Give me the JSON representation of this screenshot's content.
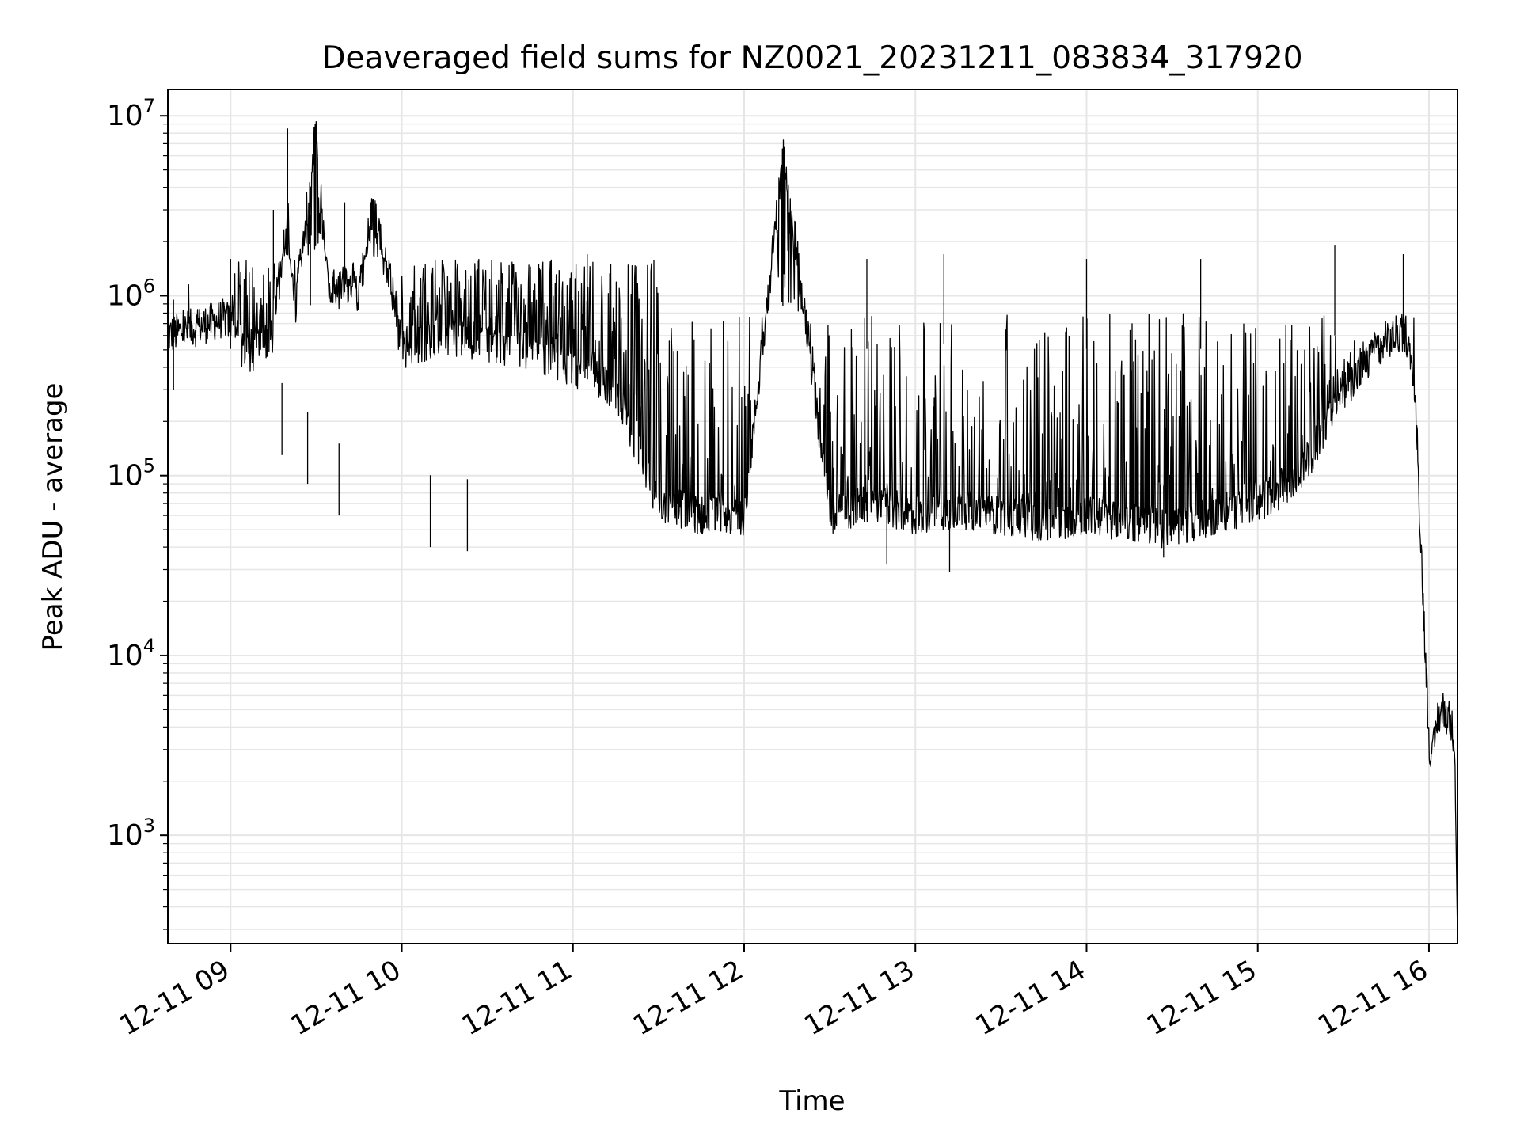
{
  "chart_data": {
    "type": "line",
    "title": "Deaveraged field sums for NZ0021_20231211_083834_317920",
    "xlabel": "Time",
    "ylabel": "Peak ADU - average",
    "y_scale": "log",
    "ylim": [
      250,
      14000000
    ],
    "xlim": [
      "2023-12-11 08:38",
      "2023-12-11 16:10"
    ],
    "grid": "on (major and minor)",
    "line_color": "#000000",
    "grid_color": "#e6e6e6",
    "x_tick_labels": [
      "12-11 09",
      "12-11 10",
      "12-11 11",
      "12-11 12",
      "12-11 13",
      "12-11 14",
      "12-11 15",
      "12-11 16"
    ],
    "y_ticks": [
      {
        "base": "10",
        "exp": "3"
      },
      {
        "base": "10",
        "exp": "4"
      },
      {
        "base": "10",
        "exp": "5"
      },
      {
        "base": "10",
        "exp": "6"
      },
      {
        "base": "10",
        "exp": "7"
      }
    ],
    "series": [
      {
        "x": [
          "2023-12-11 08:38",
          "2023-12-11 08:45",
          "2023-12-11 08:52",
          "2023-12-11 08:58",
          "2023-12-11 09:00",
          "2023-12-11 09:05",
          "2023-12-11 09:10",
          "2023-12-11 09:15",
          "2023-12-11 09:20",
          "2023-12-11 09:22",
          "2023-12-11 09:30",
          "2023-12-11 09:35",
          "2023-12-11 09:40",
          "2023-12-11 09:45",
          "2023-12-11 09:50",
          "2023-12-11 10:00",
          "2023-12-11 10:15",
          "2023-12-11 10:30",
          "2023-12-11 10:45",
          "2023-12-11 11:00",
          "2023-12-11 11:15",
          "2023-12-11 11:30",
          "2023-12-11 11:45",
          "2023-12-11 12:00",
          "2023-12-11 12:14",
          "2023-12-11 12:30",
          "2023-12-11 12:45",
          "2023-12-11 13:00",
          "2023-12-11 13:15",
          "2023-12-11 13:30",
          "2023-12-11 13:45",
          "2023-12-11 14:00",
          "2023-12-11 14:15",
          "2023-12-11 14:30",
          "2023-12-11 14:45",
          "2023-12-11 15:00",
          "2023-12-11 15:15",
          "2023-12-11 15:30",
          "2023-12-11 15:40",
          "2023-12-11 15:48",
          "2023-12-11 15:52",
          "2023-12-11 15:55",
          "2023-12-11 15:58",
          "2023-12-11 16:00",
          "2023-12-11 16:01",
          "2023-12-11 16:03",
          "2023-12-11 16:05",
          "2023-12-11 16:07",
          "2023-12-11 16:09",
          "2023-12-11 16:10"
        ],
        "y": [
          600000,
          650000,
          700000,
          750000,
          700000,
          450000,
          500000,
          600000,
          3000000,
          700000,
          8500000,
          900000,
          1200000,
          1000000,
          3300000,
          500000,
          600000,
          550000,
          500000,
          400000,
          300000,
          70000,
          60000,
          60000,
          6700000,
          60000,
          70000,
          60000,
          65000,
          60000,
          55000,
          60000,
          55000,
          50000,
          60000,
          70000,
          100000,
          300000,
          450000,
          600000,
          620000,
          300000,
          20000,
          3500,
          2500,
          4500,
          5000,
          4500,
          3500,
          300
        ]
      }
    ]
  }
}
